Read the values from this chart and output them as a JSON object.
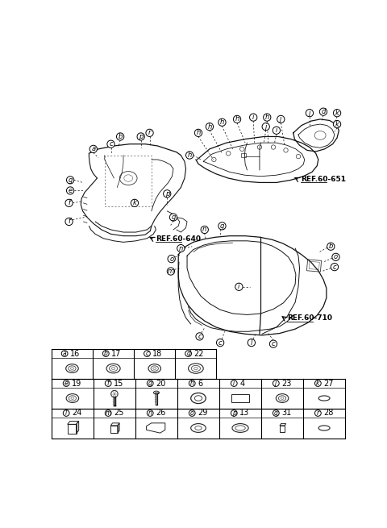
{
  "bg_color": "#ffffff",
  "table_row1": [
    [
      "a",
      "16"
    ],
    [
      "b",
      "17"
    ],
    [
      "c",
      "18"
    ],
    [
      "d",
      "22"
    ]
  ],
  "table_row2": [
    [
      "e",
      "19"
    ],
    [
      "f",
      "15"
    ],
    [
      "g",
      "20"
    ],
    [
      "h",
      "6"
    ],
    [
      "i",
      "4"
    ],
    [
      "j",
      "23"
    ],
    [
      "k",
      "27"
    ]
  ],
  "table_row3": [
    [
      "l",
      "24"
    ],
    [
      "m",
      "25"
    ],
    [
      "n",
      "26"
    ],
    [
      "o",
      "29"
    ],
    [
      "p",
      "13"
    ],
    [
      "q",
      "31"
    ],
    [
      "r",
      "28"
    ]
  ],
  "ref_640": "REF.60-640",
  "ref_651": "REF.60-651",
  "ref_710": "REF.60-710"
}
